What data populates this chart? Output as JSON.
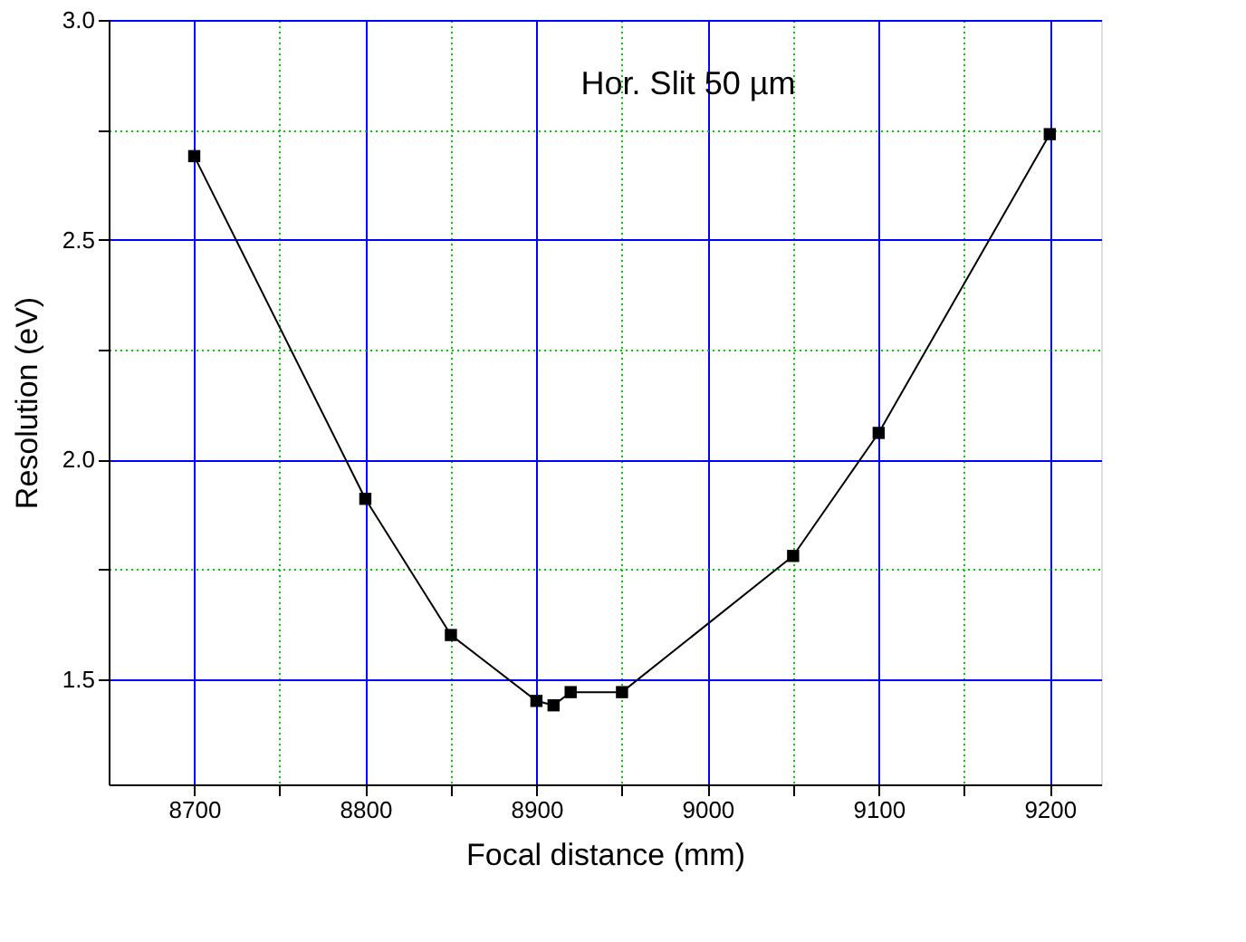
{
  "chart_data": {
    "type": "line",
    "xlabel": "Focal distance (mm)",
    "ylabel": "Resolution (eV)",
    "x": [
      8700,
      8800,
      8850,
      8900,
      8910,
      8920,
      8950,
      9050,
      9100,
      9200
    ],
    "series": [
      {
        "color": "#000000",
        "values": [
          2.69,
          1.91,
          1.6,
          1.45,
          1.44,
          1.47,
          1.47,
          1.78,
          2.06,
          2.74
        ]
      }
    ],
    "marker": "square",
    "line_style": "solid",
    "grid": true,
    "xlim": [
      8650,
      9230
    ],
    "ylim": [
      1.26,
      3.0
    ],
    "xticks": [
      8700,
      {
        "value": 8750,
        "label": null
      },
      8800,
      {
        "value": 8850,
        "label": null
      },
      8900,
      {
        "value": 8950,
        "label": null
      },
      9000,
      {
        "value": 9050,
        "label": null
      },
      9100,
      {
        "value": 9150,
        "label": null
      },
      9200
    ],
    "yticks": [
      {
        "value": 1.5,
        "label": "1.5"
      },
      {
        "value": 1.75,
        "label": null
      },
      {
        "value": 2.0,
        "label": "2.0"
      },
      {
        "value": 2.25,
        "label": null
      },
      {
        "value": 2.5,
        "label": "2.5"
      },
      {
        "value": 2.75,
        "label": null
      },
      {
        "value": 3.0,
        "label": "3.0"
      }
    ],
    "annotations": [
      "Hor. Slit 50 µm"
    ]
  }
}
